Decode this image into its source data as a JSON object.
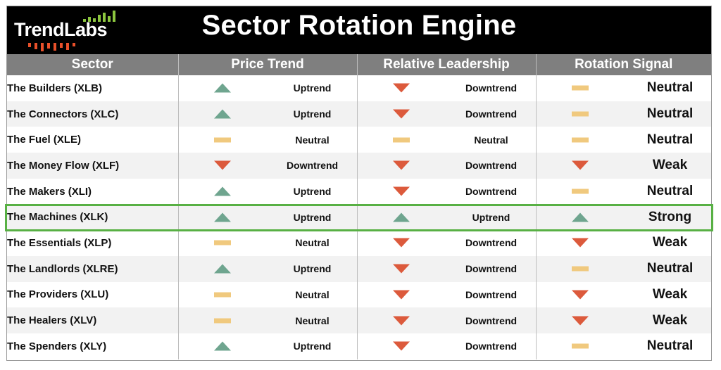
{
  "brand": {
    "logo_text": "TrendLabs",
    "bar_color": "#8cc63f",
    "tick_color": "#e8502a"
  },
  "title": "Sector Rotation Engine",
  "columns": [
    "Sector",
    "Price Trend",
    "Relative Leadership",
    "Rotation Signal"
  ],
  "colors": {
    "uptrend": "#6fa58f",
    "downtrend": "#dc5a3c",
    "neutral": "#f0c97e",
    "highlight": "#58b044"
  },
  "highlighted_row": 5,
  "rows": [
    {
      "sector": "The Builders (XLB)",
      "price": {
        "icon": "up-triangle-icon",
        "label": "Uptrend"
      },
      "leadership": {
        "icon": "down-triangle-icon",
        "label": "Downtrend"
      },
      "signal": {
        "icon": "neutral-dash-icon",
        "label": "Neutral"
      }
    },
    {
      "sector": "The Connectors (XLC)",
      "price": {
        "icon": "up-triangle-icon",
        "label": "Uptrend"
      },
      "leadership": {
        "icon": "down-triangle-icon",
        "label": "Downtrend"
      },
      "signal": {
        "icon": "neutral-dash-icon",
        "label": "Neutral"
      }
    },
    {
      "sector": "The Fuel (XLE)",
      "price": {
        "icon": "neutral-dash-icon",
        "label": "Neutral"
      },
      "leadership": {
        "icon": "neutral-dash-icon",
        "label": "Neutral"
      },
      "signal": {
        "icon": "neutral-dash-icon",
        "label": "Neutral"
      }
    },
    {
      "sector": "The Money Flow (XLF)",
      "price": {
        "icon": "down-triangle-icon",
        "label": "Downtrend"
      },
      "leadership": {
        "icon": "down-triangle-icon",
        "label": "Downtrend"
      },
      "signal": {
        "icon": "down-triangle-icon",
        "label": "Weak"
      }
    },
    {
      "sector": "The Makers (XLI)",
      "price": {
        "icon": "up-triangle-icon",
        "label": "Uptrend"
      },
      "leadership": {
        "icon": "down-triangle-icon",
        "label": "Downtrend"
      },
      "signal": {
        "icon": "neutral-dash-icon",
        "label": "Neutral"
      }
    },
    {
      "sector": "The Machines (XLK)",
      "price": {
        "icon": "up-triangle-icon",
        "label": "Uptrend"
      },
      "leadership": {
        "icon": "up-triangle-icon",
        "label": "Uptrend"
      },
      "signal": {
        "icon": "up-triangle-icon",
        "label": "Strong"
      }
    },
    {
      "sector": "The Essentials (XLP)",
      "price": {
        "icon": "neutral-dash-icon",
        "label": "Neutral"
      },
      "leadership": {
        "icon": "down-triangle-icon",
        "label": "Downtrend"
      },
      "signal": {
        "icon": "down-triangle-icon",
        "label": "Weak"
      }
    },
    {
      "sector": "The Landlords (XLRE)",
      "price": {
        "icon": "up-triangle-icon",
        "label": "Uptrend"
      },
      "leadership": {
        "icon": "down-triangle-icon",
        "label": "Downtrend"
      },
      "signal": {
        "icon": "neutral-dash-icon",
        "label": "Neutral"
      }
    },
    {
      "sector": "The Providers (XLU)",
      "price": {
        "icon": "neutral-dash-icon",
        "label": "Neutral"
      },
      "leadership": {
        "icon": "down-triangle-icon",
        "label": "Downtrend"
      },
      "signal": {
        "icon": "down-triangle-icon",
        "label": "Weak"
      }
    },
    {
      "sector": "The Healers (XLV)",
      "price": {
        "icon": "neutral-dash-icon",
        "label": "Neutral"
      },
      "leadership": {
        "icon": "down-triangle-icon",
        "label": "Downtrend"
      },
      "signal": {
        "icon": "down-triangle-icon",
        "label": "Weak"
      }
    },
    {
      "sector": "The Spenders (XLY)",
      "price": {
        "icon": "up-triangle-icon",
        "label": "Uptrend"
      },
      "leadership": {
        "icon": "down-triangle-icon",
        "label": "Downtrend"
      },
      "signal": {
        "icon": "neutral-dash-icon",
        "label": "Neutral"
      }
    }
  ]
}
